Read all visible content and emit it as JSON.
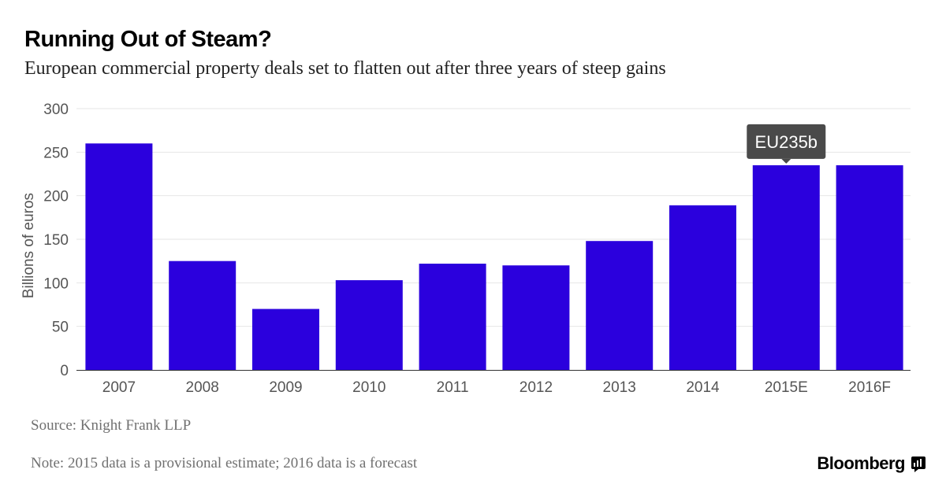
{
  "header": {
    "title": "Running Out of Steam?",
    "subtitle": "European commercial property deals set to flatten out after three years of steep gains"
  },
  "footer": {
    "source": "Source: Knight Frank LLP",
    "note": "Note: 2015 data is a provisional estimate; 2016 data is a forecast",
    "brand": "Bloomberg",
    "brand_icon": "bloomberg-terminal-icon"
  },
  "colors": {
    "bar": "#2b00dd",
    "grid": "#e6e6e6",
    "axis": "#333333",
    "tick_text": "#555555",
    "callout_bg": "#4a4a4a",
    "callout_text": "#ffffff"
  },
  "chart_data": {
    "type": "bar",
    "title": "Running Out of Steam?",
    "subtitle": "European commercial property deals set to flatten out after three years of steep gains",
    "ylabel": "Billions of euros",
    "xlabel": "",
    "categories": [
      "2007",
      "2008",
      "2009",
      "2010",
      "2011",
      "2012",
      "2013",
      "2014",
      "2015E",
      "2016F"
    ],
    "values": [
      260,
      125,
      70,
      103,
      122,
      120,
      148,
      189,
      235,
      235
    ],
    "ylim": [
      0,
      300
    ],
    "yticks": [
      0,
      50,
      100,
      150,
      200,
      250,
      300
    ],
    "grid": true,
    "annotations": [
      {
        "category": "2015E",
        "text": "EU235b"
      }
    ]
  }
}
